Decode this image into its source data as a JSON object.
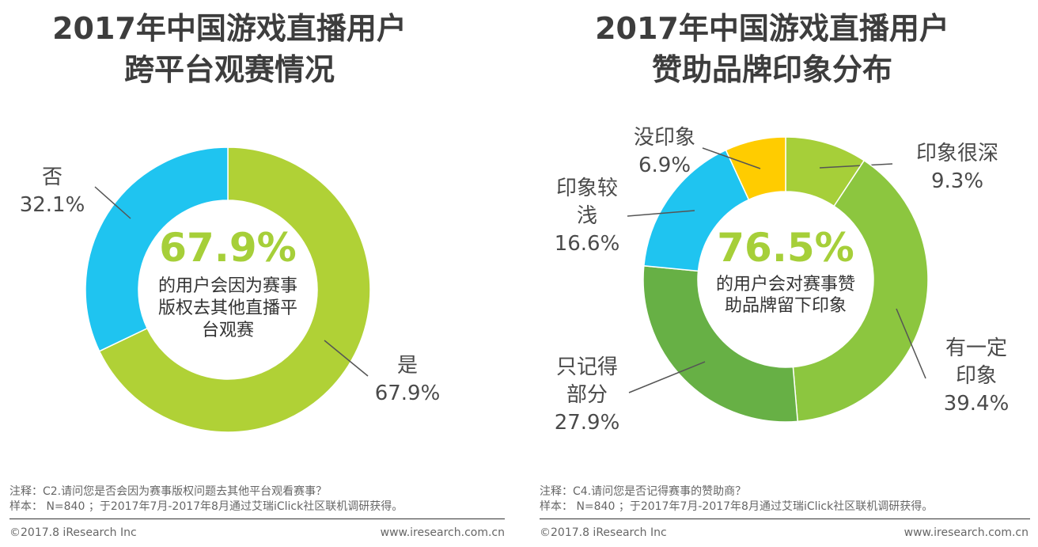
{
  "chart_data": [
    {
      "type": "pie",
      "variant": "donut",
      "title_lines": [
        "2017年中国游戏直播用户",
        "跨平台观赛情况"
      ],
      "center_value": "67.9%",
      "center_text_lines": [
        "的用户会因为赛事",
        "版权去其他直播平",
        "台观赛"
      ],
      "slices": [
        {
          "label_lines": [
            "是"
          ],
          "pct_label": "67.9%",
          "value": 67.9,
          "color": "#b0d136"
        },
        {
          "label_lines": [
            "否"
          ],
          "pct_label": "32.1%",
          "value": 32.1,
          "color": "#1fc4f0"
        }
      ],
      "note": "注释：C2.请问您是否会因为赛事版权问题去其他平台观看赛事？",
      "sample": "样本： N=840 ；于2017年7月-2017年8月通过艾瑞iClick社区联机调研获得。"
    },
    {
      "type": "pie",
      "variant": "donut",
      "title_lines": [
        "2017年中国游戏直播用户",
        "赞助品牌印象分布"
      ],
      "center_value": "76.5%",
      "center_text_lines": [
        "的用户会对赛事赞",
        "助品牌留下印象"
      ],
      "slices": [
        {
          "label_lines": [
            "印象很深"
          ],
          "pct_label": "9.3%",
          "value": 9.3,
          "color": "#a6cf39"
        },
        {
          "label_lines": [
            "有一定",
            "印象"
          ],
          "pct_label": "39.4%",
          "value": 39.4,
          "color": "#8cc63f"
        },
        {
          "label_lines": [
            "只记得",
            "部分"
          ],
          "pct_label": "27.9%",
          "value": 27.9,
          "color": "#67b045"
        },
        {
          "label_lines": [
            "印象较",
            "浅"
          ],
          "pct_label": "16.6%",
          "value": 16.6,
          "color": "#1fc4f0"
        },
        {
          "label_lines": [
            "没印象"
          ],
          "pct_label": "6.9%",
          "value": 6.9,
          "color": "#ffcc00"
        }
      ],
      "note": "注释：C4.请问您是否记得赛事的赞助商？",
      "sample": "样本： N=840 ；于2017年7月-2017年8月通过艾瑞iClick社区联机调研获得。"
    }
  ],
  "footer": {
    "copyright": "©2017.8 iResearch Inc",
    "website": "www.iresearch.com.cn"
  },
  "colors": {
    "center_value": "#a6cf39",
    "text": "#4a4a4a",
    "leader": "#555555"
  }
}
